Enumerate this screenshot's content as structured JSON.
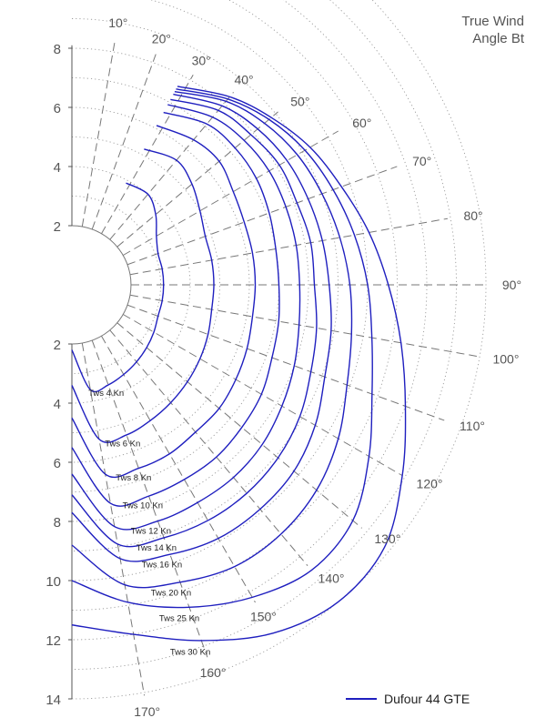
{
  "chart_data": {
    "type": "polar-line",
    "title": "True Wind Angle Bt",
    "title_lines": [
      "True Wind",
      "Angle Bt"
    ],
    "radial_axis": {
      "label": "",
      "range": [
        0,
        14
      ],
      "ticks": [
        2,
        4,
        6,
        8,
        10,
        12,
        14
      ],
      "upper_ticks": [
        2,
        4,
        6,
        8
      ]
    },
    "angle_axis": {
      "unit": "°",
      "spokes": [
        10,
        20,
        30,
        40,
        50,
        60,
        70,
        80,
        90,
        100,
        110,
        120,
        130,
        140,
        150,
        160,
        170
      ],
      "tick_labels": [
        "10°",
        "20°",
        "30°",
        "40°",
        "50°",
        "60°",
        "70°",
        "80°",
        "90°",
        "100°",
        "110°",
        "120°",
        "130°",
        "140°",
        "150°",
        "160°",
        "170°"
      ]
    },
    "grid": {
      "radial_step": 1,
      "style": "dotted circles, dashed spokes"
    },
    "legend": {
      "entries": [
        "Dufour 44 GTE"
      ],
      "placement": "bottom-right"
    },
    "series_color": "#1f1fbf",
    "series": [
      {
        "label": "Tws 4 Kn",
        "points": [
          [
            28,
            3.9
          ],
          [
            40,
            4.0
          ],
          [
            50,
            3.7
          ],
          [
            60,
            3.3
          ],
          [
            70,
            3.1
          ],
          [
            80,
            3.1
          ],
          [
            90,
            3.1
          ],
          [
            100,
            3.1
          ],
          [
            110,
            3.1
          ],
          [
            120,
            3.2
          ],
          [
            130,
            3.3
          ],
          [
            140,
            3.4
          ],
          [
            150,
            3.5
          ],
          [
            160,
            3.6
          ],
          [
            170,
            3.6
          ],
          [
            180,
            2.2
          ]
        ]
      },
      {
        "label": "Tws 6 Kn",
        "points": [
          [
            28,
            5.2
          ],
          [
            40,
            5.5
          ],
          [
            50,
            5.3
          ],
          [
            60,
            5.0
          ],
          [
            70,
            4.8
          ],
          [
            80,
            4.8
          ],
          [
            90,
            4.8
          ],
          [
            100,
            4.8
          ],
          [
            110,
            4.9
          ],
          [
            120,
            5.0
          ],
          [
            130,
            5.1
          ],
          [
            140,
            5.2
          ],
          [
            150,
            5.3
          ],
          [
            160,
            5.4
          ],
          [
            170,
            5.3
          ],
          [
            180,
            3.4
          ]
        ]
      },
      {
        "label": "Tws 8 Kn",
        "points": [
          [
            28,
            6.1
          ],
          [
            40,
            6.4
          ],
          [
            50,
            6.5
          ],
          [
            60,
            6.3
          ],
          [
            70,
            6.2
          ],
          [
            80,
            6.2
          ],
          [
            90,
            6.2
          ],
          [
            100,
            6.2
          ],
          [
            110,
            6.3
          ],
          [
            120,
            6.4
          ],
          [
            130,
            6.5
          ],
          [
            140,
            6.5
          ],
          [
            150,
            6.6
          ],
          [
            160,
            6.6
          ],
          [
            170,
            6.5
          ],
          [
            180,
            4.5
          ]
        ]
      },
      {
        "label": "Tws 10 Kn",
        "points": [
          [
            28,
            6.6
          ],
          [
            40,
            7.1
          ],
          [
            50,
            7.2
          ],
          [
            60,
            7.2
          ],
          [
            70,
            7.1
          ],
          [
            80,
            7.0
          ],
          [
            90,
            7.0
          ],
          [
            100,
            7.1
          ],
          [
            110,
            7.2
          ],
          [
            120,
            7.4
          ],
          [
            130,
            7.5
          ],
          [
            140,
            7.6
          ],
          [
            150,
            7.6
          ],
          [
            160,
            7.6
          ],
          [
            170,
            7.5
          ],
          [
            180,
            5.5
          ]
        ]
      },
      {
        "label": "Tws 12 Kn",
        "points": [
          [
            28,
            6.9
          ],
          [
            40,
            7.4
          ],
          [
            50,
            7.6
          ],
          [
            60,
            7.7
          ],
          [
            70,
            7.7
          ],
          [
            80,
            7.7
          ],
          [
            90,
            7.7
          ],
          [
            100,
            7.8
          ],
          [
            110,
            8.0
          ],
          [
            120,
            8.2
          ],
          [
            130,
            8.4
          ],
          [
            140,
            8.5
          ],
          [
            150,
            8.5
          ],
          [
            160,
            8.5
          ],
          [
            170,
            8.3
          ],
          [
            180,
            6.4
          ]
        ]
      },
      {
        "label": "Tws 14 Kn",
        "points": [
          [
            28,
            7.1
          ],
          [
            40,
            7.7
          ],
          [
            50,
            7.9
          ],
          [
            60,
            8.1
          ],
          [
            70,
            8.1
          ],
          [
            80,
            8.2
          ],
          [
            90,
            8.2
          ],
          [
            100,
            8.4
          ],
          [
            110,
            8.6
          ],
          [
            120,
            8.9
          ],
          [
            130,
            9.1
          ],
          [
            140,
            9.2
          ],
          [
            150,
            9.2
          ],
          [
            160,
            9.1
          ],
          [
            170,
            8.9
          ],
          [
            180,
            7.1
          ]
        ]
      },
      {
        "label": "Tws 16 Kn",
        "points": [
          [
            28,
            7.3
          ],
          [
            40,
            7.9
          ],
          [
            50,
            8.2
          ],
          [
            60,
            8.4
          ],
          [
            70,
            8.5
          ],
          [
            80,
            8.6
          ],
          [
            90,
            8.7
          ],
          [
            100,
            8.9
          ],
          [
            110,
            9.1
          ],
          [
            120,
            9.5
          ],
          [
            130,
            9.8
          ],
          [
            140,
            9.9
          ],
          [
            150,
            9.9
          ],
          [
            160,
            9.7
          ],
          [
            170,
            9.4
          ],
          [
            180,
            7.7
          ]
        ]
      },
      {
        "label": "Tws 20 Kn",
        "points": [
          [
            28,
            7.4
          ],
          [
            40,
            8.1
          ],
          [
            50,
            8.5
          ],
          [
            60,
            8.8
          ],
          [
            70,
            9.0
          ],
          [
            80,
            9.2
          ],
          [
            90,
            9.4
          ],
          [
            100,
            9.6
          ],
          [
            110,
            9.9
          ],
          [
            120,
            10.4
          ],
          [
            130,
            10.8
          ],
          [
            140,
            11.0
          ],
          [
            150,
            11.0
          ],
          [
            160,
            10.7
          ],
          [
            170,
            10.3
          ],
          [
            180,
            8.8
          ]
        ]
      },
      {
        "label": "Tws 25 Kn",
        "points": [
          [
            28,
            7.5
          ],
          [
            40,
            8.2
          ],
          [
            50,
            8.7
          ],
          [
            60,
            9.1
          ],
          [
            70,
            9.4
          ],
          [
            80,
            9.7
          ],
          [
            90,
            10.0
          ],
          [
            100,
            10.3
          ],
          [
            110,
            10.8
          ],
          [
            120,
            11.6
          ],
          [
            130,
            12.4
          ],
          [
            140,
            12.6
          ],
          [
            150,
            12.2
          ],
          [
            160,
            11.6
          ],
          [
            170,
            10.9
          ],
          [
            180,
            10.0
          ]
        ]
      },
      {
        "label": "Tws 30 Kn",
        "points": [
          [
            28,
            7.6
          ],
          [
            40,
            8.3
          ],
          [
            50,
            8.8
          ],
          [
            60,
            9.3
          ],
          [
            70,
            9.7
          ],
          [
            80,
            10.2
          ],
          [
            90,
            10.7
          ],
          [
            100,
            11.3
          ],
          [
            110,
            12.0
          ],
          [
            120,
            12.9
          ],
          [
            130,
            13.8
          ],
          [
            140,
            14.0
          ],
          [
            150,
            13.6
          ],
          [
            160,
            12.8
          ],
          [
            170,
            12.0
          ],
          [
            180,
            11.5
          ]
        ]
      }
    ]
  }
}
